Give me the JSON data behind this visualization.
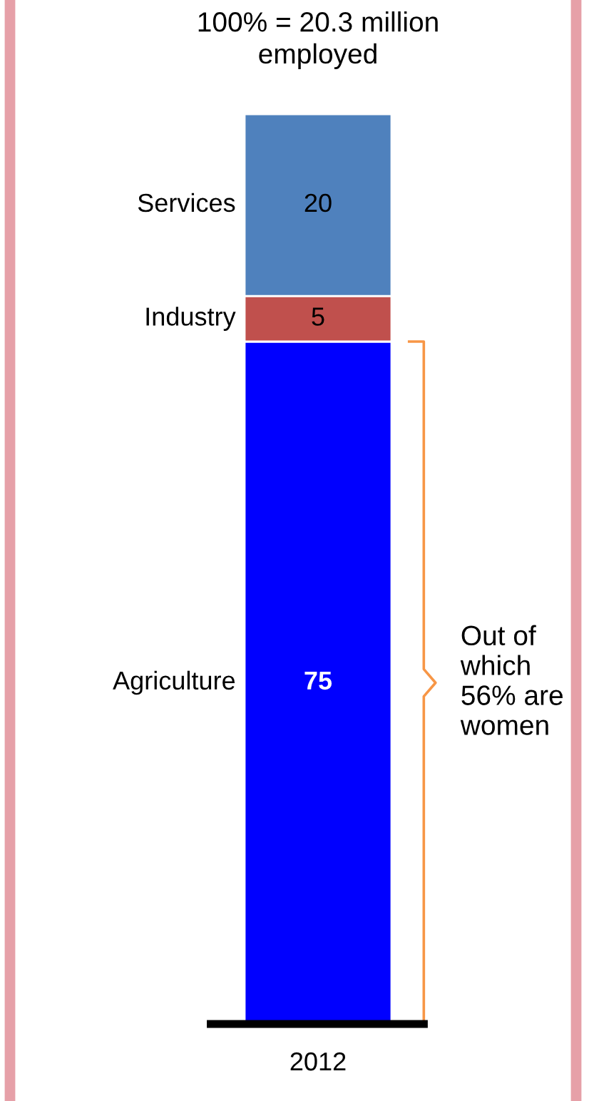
{
  "chart_data": {
    "type": "bar",
    "stacked": true,
    "title": "100% = 20.3 million\nemployed",
    "categories": [
      "2012"
    ],
    "data_labels": true,
    "series": [
      {
        "name": "Agriculture",
        "color": "#0000ff",
        "values": [
          75
        ]
      },
      {
        "name": "Industry",
        "color": "#c0504d",
        "values": [
          5
        ]
      },
      {
        "name": "Services",
        "color": "#4f81bd",
        "values": [
          20
        ]
      }
    ],
    "annotations": [
      "Out of\nwhich\n56% are\nwomen"
    ],
    "grid": false,
    "legend": false
  }
}
